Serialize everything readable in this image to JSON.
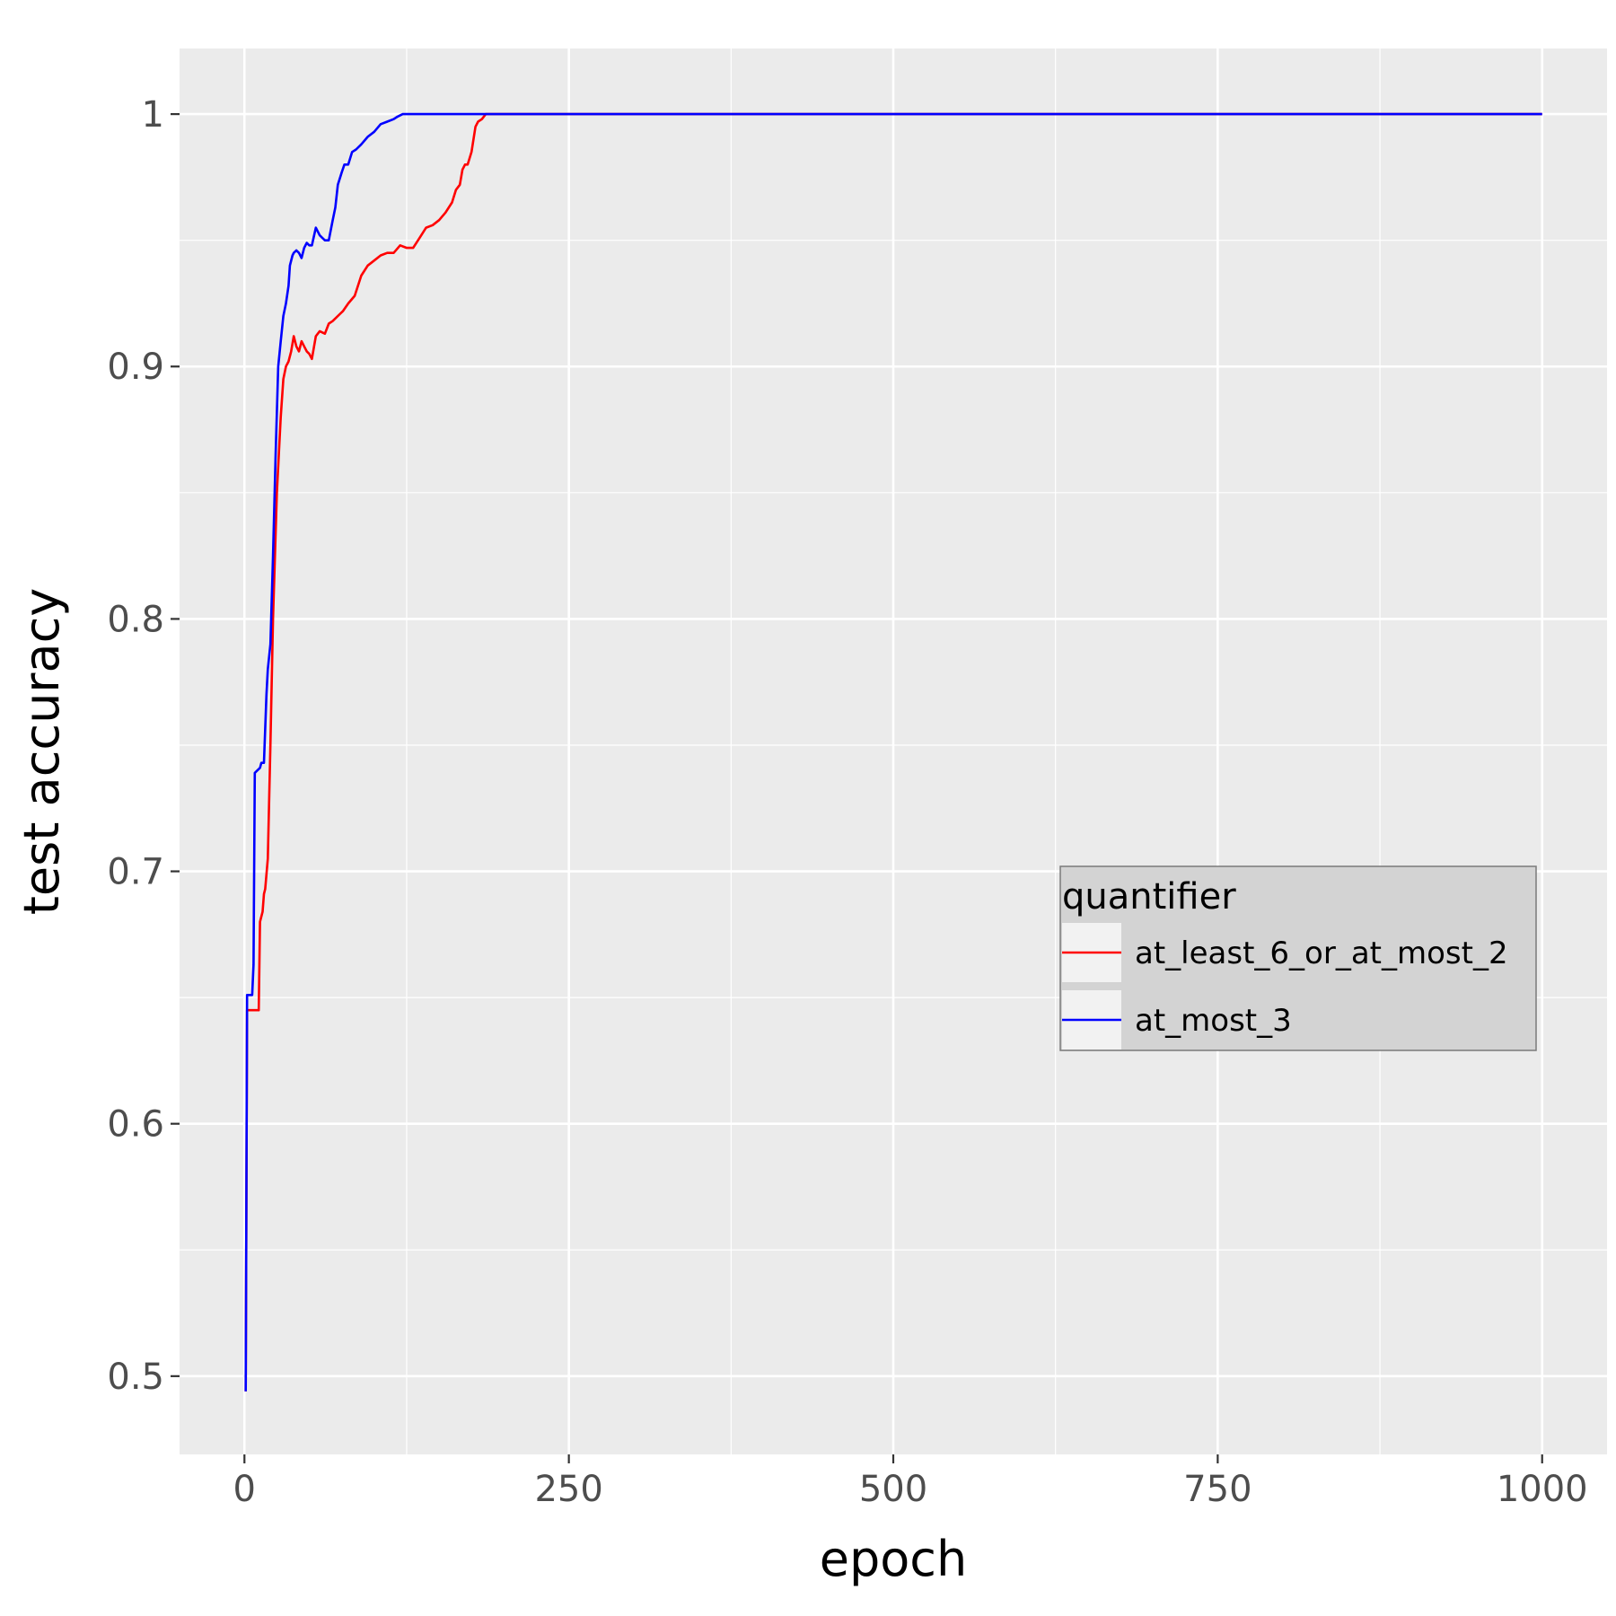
{
  "chart_data": {
    "type": "line",
    "xlabel": "epoch",
    "ylabel": "test accuracy",
    "xlim": [
      -50,
      1050
    ],
    "ylim": [
      0.469,
      1.026
    ],
    "x_ticks": [
      0,
      250,
      500,
      750,
      1000
    ],
    "x_tick_labels": [
      "0",
      "250",
      "500",
      "750",
      "1000"
    ],
    "y_ticks": [
      0.5,
      0.6,
      0.7,
      0.8,
      0.9,
      1.0
    ],
    "y_tick_labels": [
      "0.5",
      "0.6",
      "0.7",
      "0.8",
      "0.9",
      "1"
    ],
    "grid": true,
    "legend": {
      "title": "quantifier",
      "placement": "inside-right"
    },
    "series": [
      {
        "name": "at_least_6_or_at_most_2",
        "color": "#ff0000",
        "x": [
          1,
          2,
          3,
          5,
          8,
          11,
          12,
          14,
          15,
          16,
          18,
          20,
          22,
          25,
          28,
          30,
          32,
          34,
          36,
          38,
          40,
          42,
          44,
          46,
          48,
          50,
          52,
          55,
          58,
          62,
          65,
          68,
          72,
          76,
          80,
          85,
          90,
          95,
          100,
          105,
          110,
          115,
          120,
          125,
          130,
          135,
          140,
          145,
          150,
          155,
          160,
          163,
          166,
          168,
          170,
          172,
          175,
          178,
          180,
          183,
          186,
          200,
          300,
          400,
          500,
          600,
          700,
          800,
          900,
          1000
        ],
        "values": [
          0.494,
          0.645,
          0.645,
          0.645,
          0.645,
          0.645,
          0.68,
          0.684,
          0.691,
          0.693,
          0.705,
          0.75,
          0.8,
          0.85,
          0.88,
          0.895,
          0.9,
          0.902,
          0.906,
          0.912,
          0.908,
          0.906,
          0.91,
          0.908,
          0.906,
          0.905,
          0.903,
          0.912,
          0.914,
          0.913,
          0.917,
          0.918,
          0.92,
          0.922,
          0.925,
          0.928,
          0.936,
          0.94,
          0.942,
          0.944,
          0.945,
          0.945,
          0.948,
          0.947,
          0.947,
          0.951,
          0.955,
          0.956,
          0.958,
          0.961,
          0.965,
          0.97,
          0.972,
          0.978,
          0.98,
          0.98,
          0.985,
          0.995,
          0.997,
          0.998,
          1.0,
          1.0,
          1.0,
          1.0,
          1.0,
          1.0,
          1.0,
          1.0,
          1.0,
          1.0
        ]
      },
      {
        "name": "at_most_3",
        "color": "#0000ff",
        "x": [
          1,
          2,
          3,
          6,
          7,
          8,
          10,
          12,
          13,
          15,
          17,
          18,
          20,
          22,
          24,
          26,
          28,
          30,
          32,
          34,
          35,
          37,
          38,
          40,
          42,
          44,
          46,
          48,
          50,
          52,
          55,
          58,
          60,
          62,
          65,
          68,
          70,
          72,
          75,
          77,
          80,
          83,
          86,
          90,
          95,
          100,
          105,
          110,
          115,
          118,
          122,
          200,
          300,
          400,
          500,
          600,
          700,
          800,
          900,
          1000
        ],
        "values": [
          0.494,
          0.651,
          0.651,
          0.651,
          0.663,
          0.739,
          0.74,
          0.741,
          0.743,
          0.743,
          0.77,
          0.78,
          0.79,
          0.825,
          0.865,
          0.9,
          0.91,
          0.92,
          0.925,
          0.932,
          0.94,
          0.944,
          0.945,
          0.946,
          0.945,
          0.943,
          0.947,
          0.949,
          0.948,
          0.948,
          0.955,
          0.952,
          0.951,
          0.95,
          0.95,
          0.958,
          0.963,
          0.972,
          0.977,
          0.98,
          0.98,
          0.985,
          0.986,
          0.988,
          0.991,
          0.993,
          0.996,
          0.997,
          0.998,
          0.999,
          1.0,
          1.0,
          1.0,
          1.0,
          1.0,
          1.0,
          1.0,
          1.0,
          1.0,
          1.0
        ]
      }
    ]
  }
}
